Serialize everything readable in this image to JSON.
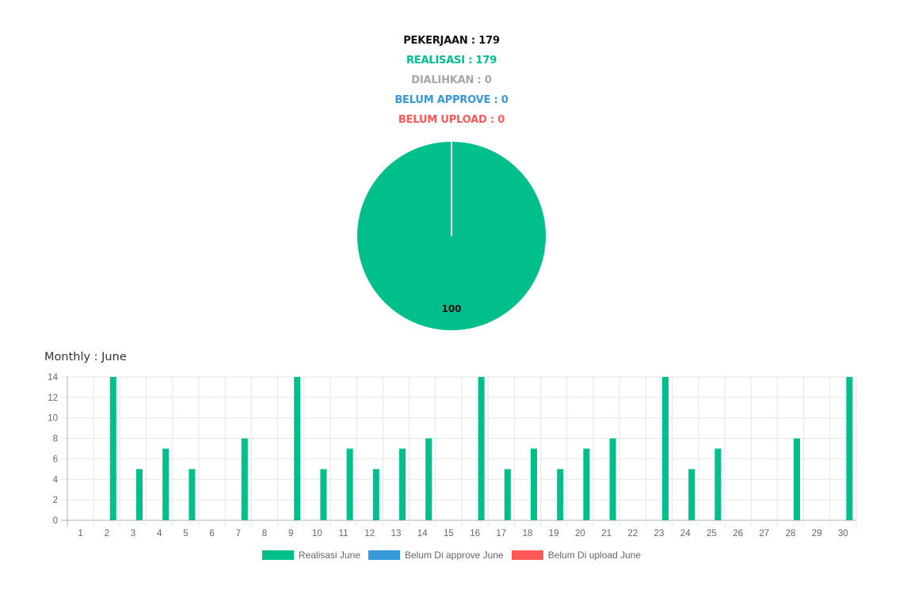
{
  "summary": {
    "pekerjaan": "PEKERJAAN : 179",
    "realisasi": "REALISASI : 179",
    "dialihkan": "DIALIHKAN : 0",
    "belum_approve": "BELUM APPROVE : 0",
    "belum_upload": "BELUM UPLOAD : 0"
  },
  "colors": {
    "realisasi": "#00bf8a",
    "dialihkan": "#a6a6a6",
    "belum_approve": "#3498db",
    "belum_upload": "#ff5858",
    "pekerjaan": "#111111"
  },
  "monthly_title": "Monthly : June",
  "chart_data": [
    {
      "type": "pie",
      "categories": [
        "Realisasi",
        "Dialihkan",
        "Belum Approve",
        "Belum Upload"
      ],
      "values": [
        100,
        0,
        0,
        0
      ],
      "data_labels": [
        "100"
      ],
      "colors": [
        "#00bf8a",
        "#a6a6a6",
        "#3498db",
        "#ff5858"
      ]
    },
    {
      "type": "bar",
      "title": "Monthly : June",
      "categories": [
        "1",
        "2",
        "3",
        "4",
        "5",
        "6",
        "7",
        "8",
        "9",
        "10",
        "11",
        "12",
        "13",
        "14",
        "15",
        "16",
        "17",
        "18",
        "19",
        "20",
        "21",
        "22",
        "23",
        "24",
        "25",
        "26",
        "27",
        "28",
        "29",
        "30"
      ],
      "series": [
        {
          "name": "Realisasi June",
          "color": "#00bf8a",
          "values": [
            0,
            14,
            5,
            7,
            5,
            0,
            8,
            0,
            14,
            5,
            7,
            5,
            7,
            8,
            0,
            14,
            5,
            7,
            5,
            7,
            8,
            0,
            14,
            5,
            7,
            0,
            0,
            8,
            0,
            14
          ]
        },
        {
          "name": "Belum Di approve June",
          "color": "#3498db",
          "values": [
            0,
            0,
            0,
            0,
            0,
            0,
            0,
            0,
            0,
            0,
            0,
            0,
            0,
            0,
            0,
            0,
            0,
            0,
            0,
            0,
            0,
            0,
            0,
            0,
            0,
            0,
            0,
            0,
            0,
            0
          ]
        },
        {
          "name": "Belum Di upload June",
          "color": "#ff5858",
          "values": [
            0,
            0,
            0,
            0,
            0,
            0,
            0,
            0,
            0,
            0,
            0,
            0,
            0,
            0,
            0,
            0,
            0,
            0,
            0,
            0,
            0,
            0,
            0,
            0,
            0,
            0,
            0,
            0,
            0,
            0
          ]
        }
      ],
      "y_ticks": [
        "0",
        "2",
        "4",
        "6",
        "8",
        "10",
        "12",
        "14"
      ],
      "ylim": [
        0,
        14
      ],
      "grid": true,
      "legend_position": "bottom"
    }
  ]
}
